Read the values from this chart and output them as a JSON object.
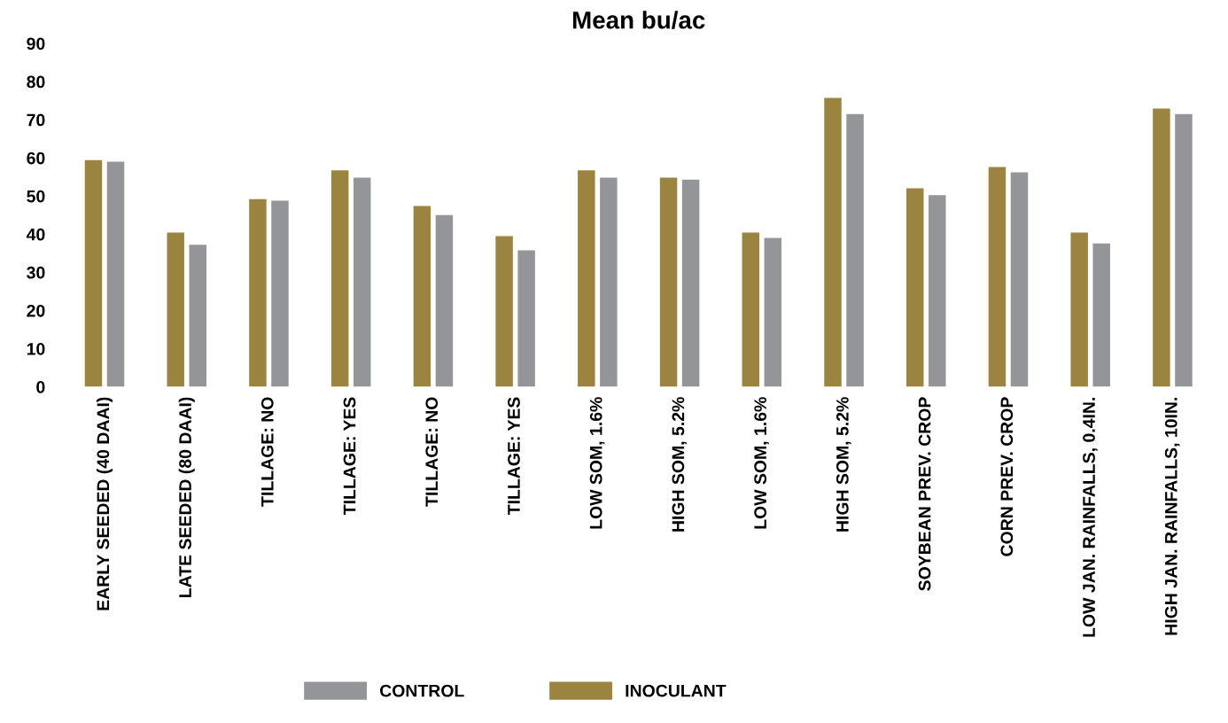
{
  "chart_data": {
    "type": "bar",
    "title": "Mean bu/ac",
    "categories": [
      "EARLY SEEDED (40 DAAI)",
      "LATE SEEDED (80 DAAI)",
      "TILLAGE: NO",
      "TILLAGE: YES",
      "TILLAGE: NO",
      "TILLAGE: YES",
      "LOW SOM, 1.6%",
      "HIGH SOM, 5.2%",
      "LOW SOM, 1.6%",
      "HIGH SOM, 5.2%",
      "SOYBEAN PREV. CROP",
      "CORN PREV. CROP",
      "LOW JAN. RAINFALLS, 0.4IN.",
      "HIGH JAN. RAINFALLS, 10IN."
    ],
    "series": [
      {
        "name": "INOCULANT",
        "color": "#9a8440",
        "values": [
          59.4,
          40.4,
          49.2,
          56.7,
          47.4,
          39.5,
          56.7,
          54.8,
          40.4,
          75.7,
          52.0,
          57.6,
          40.4,
          72.9
        ]
      },
      {
        "name": "CONTROL",
        "color": "#949598",
        "values": [
          59.0,
          37.2,
          48.8,
          54.8,
          45.0,
          35.8,
          54.8,
          54.3,
          39.0,
          71.5,
          50.2,
          56.2,
          37.6,
          71.5
        ]
      }
    ],
    "ylim": [
      0,
      90
    ],
    "yticks": [
      0,
      10,
      20,
      30,
      40,
      50,
      60,
      70,
      80,
      90
    ],
    "grid": false,
    "legend": "bottom"
  }
}
